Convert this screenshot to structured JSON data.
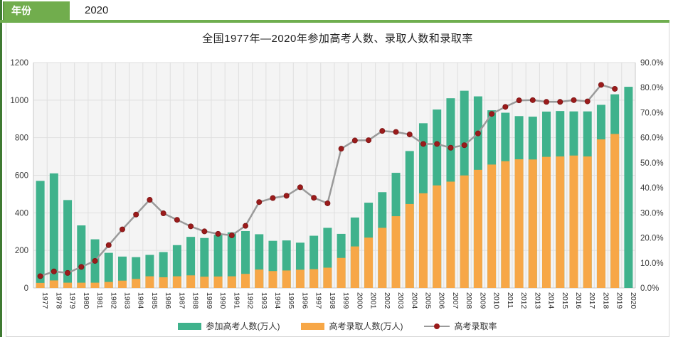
{
  "header": {
    "field_label": "年份",
    "selected_year": "2020"
  },
  "chart": {
    "title": "全国1977年—2020年参加高考人数、录取人数和录取率"
  },
  "colors": {
    "participants_bar": "#3fb28c",
    "admitted_bar": "#f7a747",
    "rate_line": "#9a9a9a",
    "rate_marker": "#9a1b1b",
    "plot_bg": "#f4f4f4",
    "gridline": "#dfdfdf",
    "axis_line": "#c9c9c9",
    "tick_text": "#3c3c3c",
    "header_green": "#71ad4d",
    "rule_green": "#6fae4f",
    "strip_green": "#3e7a31"
  },
  "chart_data": {
    "type": "bar",
    "subtype": "combo-stacked-bar-with-line",
    "title": "全国1977年—2020年参加高考人数、录取人数和录取率",
    "categories": [
      "1977",
      "1978",
      "1979",
      "1980",
      "1981",
      "1982",
      "1983",
      "1984",
      "1985",
      "1986",
      "1987",
      "1988",
      "1989",
      "1990",
      "1991",
      "1992",
      "1993",
      "1994",
      "1995",
      "1996",
      "1997",
      "1998",
      "1999",
      "2000",
      "2001",
      "2002",
      "2003",
      "2004",
      "2005",
      "2006",
      "2007",
      "2008",
      "2009",
      "2010",
      "2011",
      "2012",
      "2013",
      "2014",
      "2015",
      "2016",
      "2017",
      "2018",
      "2019",
      "2020"
    ],
    "series": [
      {
        "name": "参加高考人数(万人)",
        "type": "bar",
        "axis": "left",
        "color": "#3fb28c",
        "values": [
          570,
          610,
          468,
          333,
          259,
          187,
          167,
          164,
          176,
          191,
          228,
          272,
          266,
          283,
          296,
          303,
          286,
          251,
          253,
          241,
          278,
          320,
          288,
          375,
          454,
          510,
          613,
          729,
          877,
          950,
          1010,
          1050,
          1020,
          946,
          933,
          915,
          912,
          939,
          942,
          940,
          940,
          975,
          1031,
          1071
        ]
      },
      {
        "name": "高考录取人数(万人)",
        "type": "bar",
        "axis": "left",
        "color": "#f7a747",
        "values": [
          27,
          40,
          28,
          28,
          28,
          32,
          39,
          48,
          62,
          57,
          62,
          67,
          60,
          61,
          62,
          75,
          98,
          90,
          93,
          97,
          100,
          108,
          160,
          221,
          268,
          320,
          382,
          447,
          504,
          546,
          566,
          599,
          629,
          657,
          675,
          685,
          684,
          698,
          700,
          705,
          700,
          791,
          820,
          null
        ]
      },
      {
        "name": "高考录取率",
        "type": "line",
        "axis": "right",
        "color": "#9a9a9a",
        "marker_color": "#9a1b1b",
        "values": [
          4.7,
          6.6,
          6.0,
          8.4,
          10.8,
          17.1,
          23.4,
          29.3,
          35.2,
          29.8,
          27.2,
          24.6,
          22.6,
          21.6,
          21.0,
          24.8,
          34.3,
          35.9,
          36.8,
          40.2,
          36.0,
          33.8,
          55.6,
          58.9,
          59.0,
          62.7,
          62.3,
          61.3,
          57.5,
          57.5,
          56.0,
          57.0,
          61.7,
          69.5,
          72.3,
          74.9,
          75.0,
          74.3,
          74.3,
          75.0,
          74.5,
          81.1,
          79.5,
          null
        ]
      }
    ],
    "left_axis": {
      "min": 0,
      "max": 1200,
      "step": 200,
      "ticks": [
        "0",
        "200",
        "400",
        "600",
        "800",
        "1000",
        "1200"
      ]
    },
    "right_axis": {
      "min": 0,
      "max": 90,
      "step": 10,
      "ticks": [
        "0.0%",
        "10.0%",
        "20.0%",
        "30.0%",
        "40.0%",
        "50.0%",
        "60.0%",
        "70.0%",
        "80.0%",
        "90.0%"
      ]
    },
    "grid": true,
    "x_labels_rotated_deg": 90,
    "legend_position": "bottom"
  }
}
